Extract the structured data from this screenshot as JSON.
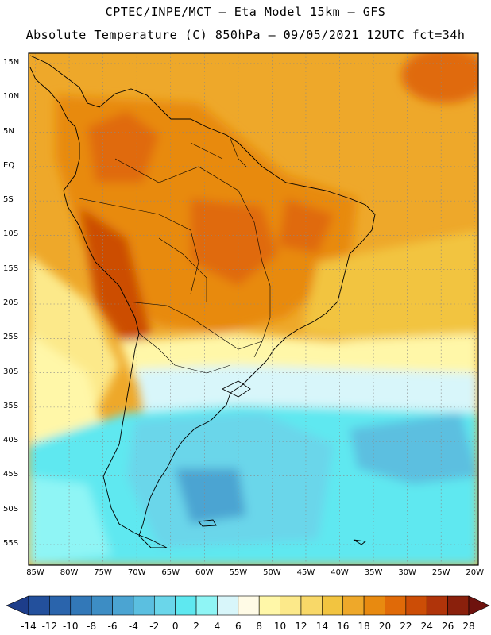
{
  "title_line1": "CPTEC/INPE/MCT –  Eta Model 15km – GFS",
  "title_line2": "Absolute Temperature (C) 850hPa – 09/05/2021 12UTC fct=34h",
  "lat_ticks": [
    "15N",
    "10N",
    "5N",
    "EQ",
    "5S",
    "10S",
    "15S",
    "20S",
    "25S",
    "30S",
    "35S",
    "40S",
    "45S",
    "50S",
    "55S"
  ],
  "lon_ticks": [
    "85W",
    "80W",
    "75W",
    "70W",
    "65W",
    "60W",
    "55W",
    "50W",
    "45W",
    "40W",
    "35W",
    "30W",
    "25W",
    "20W"
  ],
  "colorbar": {
    "labels": [
      "-14",
      "-12",
      "-10",
      "-8",
      "-6",
      "-4",
      "-2",
      "0",
      "2",
      "4",
      "6",
      "8",
      "10",
      "12",
      "14",
      "16",
      "18",
      "20",
      "22",
      "24",
      "26",
      "28"
    ],
    "colors": [
      "#1d3d8a",
      "#23509c",
      "#2a64ac",
      "#3278b8",
      "#3d8dc4",
      "#4ba4d2",
      "#5bbfe0",
      "#6ad6ea",
      "#5ee8f0",
      "#8ff5f5",
      "#d8f6fa",
      "#fffbe6",
      "#fff7a8",
      "#fce98a",
      "#f8d868",
      "#f2c440",
      "#eea82a",
      "#e88a10",
      "#e06a08",
      "#cc4d06",
      "#b0340a",
      "#8a200c",
      "#6e120e"
    ]
  },
  "map": {
    "extent": {
      "lon_min": -86,
      "lon_max": -19.5,
      "lat_min": -58,
      "lat_max": 16.5
    }
  }
}
